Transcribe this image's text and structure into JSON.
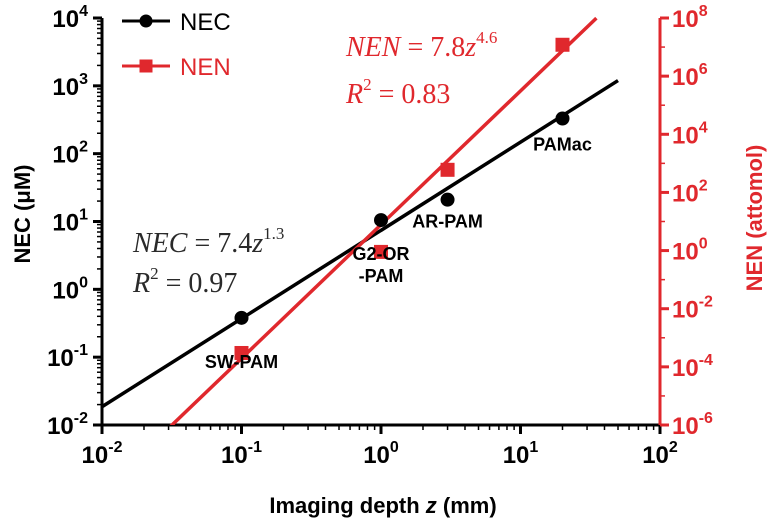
{
  "chart_data": {
    "type": "scatter",
    "title": "",
    "xlabel": "Imaging depth z (mm)",
    "ylabel_left": "NEC (μM)",
    "ylabel_right": "NEN (attomol)",
    "x_scale": "log",
    "y_left_scale": "log",
    "y_right_scale": "log",
    "xlim": [
      0.01,
      100
    ],
    "ylim_left": [
      0.01,
      10000
    ],
    "ylim_right": [
      1e-06,
      100000000
    ],
    "x_ticks": [
      {
        "value": 0.01,
        "base": "10",
        "exp": "-2"
      },
      {
        "value": 0.1,
        "base": "10",
        "exp": "-1"
      },
      {
        "value": 1,
        "base": "10",
        "exp": "0"
      },
      {
        "value": 10,
        "base": "10",
        "exp": "1"
      },
      {
        "value": 100,
        "base": "10",
        "exp": "2"
      }
    ],
    "y_left_ticks": [
      {
        "value": 0.01,
        "base": "10",
        "exp": "-2"
      },
      {
        "value": 0.1,
        "base": "10",
        "exp": "-1"
      },
      {
        "value": 1,
        "base": "10",
        "exp": "0"
      },
      {
        "value": 10,
        "base": "10",
        "exp": "1"
      },
      {
        "value": 100,
        "base": "10",
        "exp": "2"
      },
      {
        "value": 1000,
        "base": "10",
        "exp": "3"
      },
      {
        "value": 10000,
        "base": "10",
        "exp": "4"
      }
    ],
    "y_right_ticks": [
      {
        "value": 1e-06,
        "base": "10",
        "exp": "-6"
      },
      {
        "value": 0.0001,
        "base": "10",
        "exp": "-4"
      },
      {
        "value": 0.01,
        "base": "10",
        "exp": "-2"
      },
      {
        "value": 1,
        "base": "10",
        "exp": "0"
      },
      {
        "value": 100,
        "base": "10",
        "exp": "2"
      },
      {
        "value": 10000,
        "base": "10",
        "exp": "4"
      },
      {
        "value": 1000000,
        "base": "10",
        "exp": "6"
      },
      {
        "value": 100000000,
        "base": "10",
        "exp": "8"
      }
    ],
    "legend_position": "top-left",
    "grid": false,
    "series": [
      {
        "name": "NEC",
        "axis": "left",
        "color": "#000000",
        "marker": "circle",
        "x": [
          0.1,
          1,
          3,
          20
        ],
        "y": [
          0.38,
          10.5,
          21,
          330
        ],
        "fit": {
          "a": 7.4,
          "b": 1.3,
          "x_range": [
            0.01,
            50
          ]
        }
      },
      {
        "name": "NEN",
        "axis": "right",
        "color": "#e0282d",
        "marker": "square",
        "x": [
          0.1,
          1,
          3,
          20
        ],
        "y": [
          0.0003,
          0.9,
          600,
          12000000
        ],
        "fit": {
          "a": 7.8,
          "b": 4.6,
          "x_range": [
            0.03,
            35
          ]
        }
      }
    ],
    "point_labels": [
      {
        "lines": [
          "SW-PAM"
        ],
        "x": 0.1
      },
      {
        "lines": [
          "G2-OR",
          "-PAM"
        ],
        "x": 1
      },
      {
        "lines": [
          "AR-PAM"
        ],
        "x": 3
      },
      {
        "lines": [
          "PAMac"
        ],
        "x": 20
      }
    ],
    "annotations": {
      "nec_eq": {
        "lhs": "NEC",
        "mid": " = 7.4",
        "var": "z",
        "exp": "1.3"
      },
      "nec_r2": {
        "lhs": "R",
        "exp": "2",
        "rhs": " = 0.97"
      },
      "nen_eq": {
        "lhs": "NEN",
        "mid": " = 7.8",
        "var": "z",
        "exp": "4.6"
      },
      "nen_r2": {
        "lhs": "R",
        "exp": "2",
        "rhs": " = 0.83"
      }
    }
  }
}
